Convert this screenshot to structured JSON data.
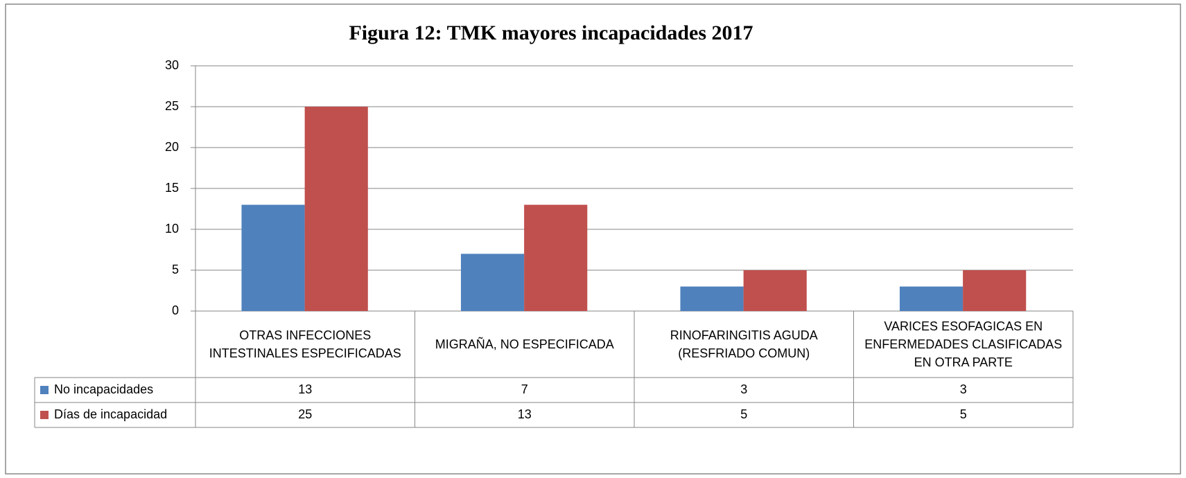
{
  "chart_data": {
    "type": "bar",
    "title": "Figura 12: TMK mayores incapacidades 2017",
    "categories": [
      "OTRAS INFECCIONES INTESTINALES ESPECIFICADAS",
      "MIGRAÑA, NO ESPECIFICADA",
      "RINOFARINGITIS AGUDA (RESFRIADO COMUN)",
      "VARICES ESOFAGICAS EN ENFERMEDADES CLASIFICADAS EN OTRA PARTE"
    ],
    "series": [
      {
        "name": "No incapacidades",
        "color": "#4f81bd",
        "values": [
          13,
          7,
          3,
          3
        ]
      },
      {
        "name": "Días de incapacidad",
        "color": "#c0504d",
        "values": [
          25,
          13,
          5,
          5
        ]
      }
    ],
    "ylim": [
      0,
      30
    ],
    "yticks": [
      0,
      5,
      10,
      15,
      20,
      25,
      30
    ],
    "grid": true,
    "data_table": true
  }
}
